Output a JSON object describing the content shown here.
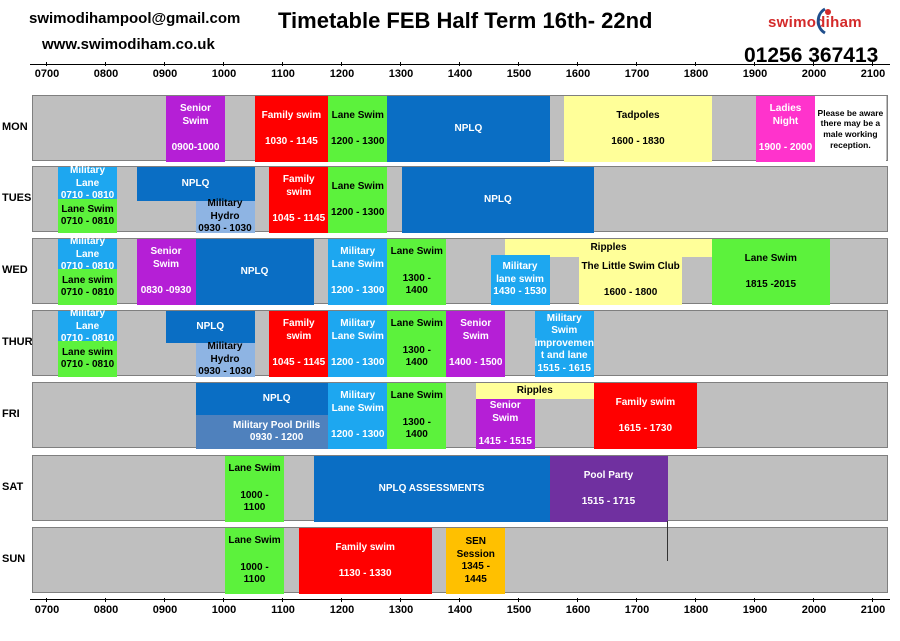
{
  "header": {
    "email": "swimodihampool@gmail.com",
    "website": "www.swimodiham.co.uk",
    "title": "Timetable FEB Half Term 16th- 22nd",
    "logo_text": "swimodiham",
    "phone": "01256 367413"
  },
  "colors": {
    "track": "#bfbfbf",
    "senior": "#b51fd6",
    "family": "#ff0000",
    "lane": "#5cf23c",
    "nplq": "#0a6ec4",
    "tadpoles": "#ffff99",
    "ladies": "#ff33cc",
    "military": "#1da7f0",
    "hydro": "#8eb4e3",
    "drills": "#4f81bd",
    "pool_party": "#7030a0",
    "sen": "#ffc000"
  },
  "time_axis": [
    "0700",
    "0800",
    "0900",
    "1000",
    "1100",
    "1200",
    "1300",
    "1400",
    "1500",
    "1600",
    "1700",
    "1800",
    "1900",
    "2000",
    "2100"
  ],
  "days": [
    {
      "label": "MON",
      "blocks": [
        {
          "name": "senior-swim",
          "lines": [
            "Senior",
            "Swim",
            "",
            "0900-1000"
          ],
          "color": "#b51fd6",
          "fg": "#ffffff"
        },
        {
          "name": "family-swim",
          "lines": [
            "Family swim",
            "",
            "1030 - 1145"
          ],
          "color": "#ff0000",
          "fg": "#ffffff"
        },
        {
          "name": "lane-swim",
          "lines": [
            "Lane Swim",
            "",
            "1200 - 1300"
          ],
          "color": "#5cf23c",
          "fg": "#000000"
        },
        {
          "name": "nplq",
          "lines": [
            "NPLQ"
          ],
          "color": "#0a6ec4",
          "fg": "#ffffff"
        },
        {
          "name": "tadpoles",
          "lines": [
            "Tadpoles",
            "",
            "1600 - 1830"
          ],
          "color": "#ffff99",
          "fg": "#000000"
        },
        {
          "name": "ladies-night",
          "lines": [
            "Ladies",
            "Night",
            "",
            "1900 - 2000"
          ],
          "color": "#ff33cc",
          "fg": "#ffffff"
        },
        {
          "name": "male-reception-note",
          "lines": [
            "Please be aware",
            "there may be a",
            "male working",
            "reception."
          ],
          "color": "#ffffff",
          "fg": "#000000"
        }
      ]
    },
    {
      "label": "TUES",
      "blocks": [
        {
          "name": "military-lane",
          "lines": [
            "Military Lane",
            "0710 - 0810"
          ],
          "color": "#1da7f0",
          "fg": "#ffffff"
        },
        {
          "name": "lane-swim-early",
          "lines": [
            "Lane Swim",
            "0710 - 0810"
          ],
          "color": "#5cf23c",
          "fg": "#000000"
        },
        {
          "name": "nplq-morning",
          "lines": [
            "NPLQ"
          ],
          "color": "#0a6ec4",
          "fg": "#ffffff"
        },
        {
          "name": "military-hydro",
          "lines": [
            "Military Hydro",
            "",
            "0930 - 1030"
          ],
          "color": "#8eb4e3",
          "fg": "#000000"
        },
        {
          "name": "family-swim",
          "lines": [
            "Family swim",
            "",
            "1045 - 1145"
          ],
          "color": "#ff0000",
          "fg": "#ffffff"
        },
        {
          "name": "lane-swim",
          "lines": [
            "Lane Swim",
            "",
            "1200 - 1300"
          ],
          "color": "#5cf23c",
          "fg": "#000000"
        },
        {
          "name": "nplq-afternoon",
          "lines": [
            "NPLQ"
          ],
          "color": "#0a6ec4",
          "fg": "#ffffff"
        }
      ]
    },
    {
      "label": "WED",
      "blocks": [
        {
          "name": "military-lane",
          "lines": [
            "Military Lane",
            "0710 - 0810"
          ],
          "color": "#1da7f0",
          "fg": "#ffffff"
        },
        {
          "name": "lane-swim-early",
          "lines": [
            "Lane swim",
            "0710 - 0810"
          ],
          "color": "#5cf23c",
          "fg": "#000000"
        },
        {
          "name": "senior-swim",
          "lines": [
            "Senior",
            "Swim",
            "",
            "0830 -0930"
          ],
          "color": "#b51fd6",
          "fg": "#ffffff"
        },
        {
          "name": "nplq",
          "lines": [
            "NPLQ"
          ],
          "color": "#0a6ec4",
          "fg": "#ffffff"
        },
        {
          "name": "military-lane-swim",
          "lines": [
            "Military",
            "Lane Swim",
            "",
            "1200 - 1300"
          ],
          "color": "#1da7f0",
          "fg": "#ffffff"
        },
        {
          "name": "lane-swim",
          "lines": [
            "Lane Swim",
            "",
            "1300 -",
            "1400"
          ],
          "color": "#5cf23c",
          "fg": "#000000"
        },
        {
          "name": "ripples",
          "lines": [
            "Ripples"
          ],
          "color": "#ffff99",
          "fg": "#000000"
        },
        {
          "name": "military-lane-swim-afternoon",
          "lines": [
            "Military",
            "lane swim",
            "1430 - 1530"
          ],
          "color": "#1da7f0",
          "fg": "#ffffff"
        },
        {
          "name": "little-swim-club",
          "lines": [
            "The Little Swim Club",
            "",
            "1600 - 1800"
          ],
          "color": "#ffff99",
          "fg": "#000000"
        },
        {
          "name": "lane-swim-evening",
          "lines": [
            "Lane Swim",
            "",
            "1815 -2015"
          ],
          "color": "#5cf23c",
          "fg": "#000000"
        }
      ]
    },
    {
      "label": "THUR",
      "blocks": [
        {
          "name": "military-lane",
          "lines": [
            "Military Lane",
            "0710 - 0810"
          ],
          "color": "#1da7f0",
          "fg": "#ffffff"
        },
        {
          "name": "lane-swim-early",
          "lines": [
            "Lane swim",
            "0710 - 0810"
          ],
          "color": "#5cf23c",
          "fg": "#000000"
        },
        {
          "name": "nplq",
          "lines": [
            "NPLQ"
          ],
          "color": "#0a6ec4",
          "fg": "#ffffff"
        },
        {
          "name": "military-hydro",
          "lines": [
            "Military Hydro",
            "",
            "0930 - 1030"
          ],
          "color": "#8eb4e3",
          "fg": "#000000"
        },
        {
          "name": "family-swim",
          "lines": [
            "Family swim",
            "",
            "1045 - 1145"
          ],
          "color": "#ff0000",
          "fg": "#ffffff"
        },
        {
          "name": "military-lane-swim",
          "lines": [
            "Military",
            "Lane Swim",
            "",
            "1200 - 1300"
          ],
          "color": "#1da7f0",
          "fg": "#ffffff"
        },
        {
          "name": "lane-swim",
          "lines": [
            "Lane Swim",
            "",
            "1300 -",
            "1400"
          ],
          "color": "#5cf23c",
          "fg": "#000000"
        },
        {
          "name": "senior-swim",
          "lines": [
            "Senior Swim",
            "",
            "1400 - 1500"
          ],
          "color": "#b51fd6",
          "fg": "#ffffff"
        },
        {
          "name": "military-swim-improvement",
          "lines": [
            "Military",
            "Swim",
            "improvemen",
            "t and lane",
            "1515 - 1615"
          ],
          "color": "#1da7f0",
          "fg": "#ffffff"
        }
      ]
    },
    {
      "label": "FRI",
      "blocks": [
        {
          "name": "nplq",
          "lines": [
            "NPLQ"
          ],
          "color": "#0a6ec4",
          "fg": "#ffffff"
        },
        {
          "name": "military-pool-drills",
          "lines": [
            "Military Pool Drills",
            "0930 - 1200"
          ],
          "color": "#4f81bd",
          "fg": "#ffffff"
        },
        {
          "name": "military-lane-swim",
          "lines": [
            "Military",
            "Lane Swim",
            "",
            "1200 - 1300"
          ],
          "color": "#1da7f0",
          "fg": "#ffffff"
        },
        {
          "name": "lane-swim",
          "lines": [
            "Lane Swim",
            "",
            "1300 -",
            "1400"
          ],
          "color": "#5cf23c",
          "fg": "#000000"
        },
        {
          "name": "ripples",
          "lines": [
            "Ripples"
          ],
          "color": "#ffff99",
          "fg": "#000000"
        },
        {
          "name": "senior-swim",
          "lines": [
            "Senior Swim",
            "",
            "1415 - 1515"
          ],
          "color": "#b51fd6",
          "fg": "#ffffff"
        },
        {
          "name": "family-swim",
          "lines": [
            "Family swim",
            "",
            "1615 - 1730"
          ],
          "color": "#ff0000",
          "fg": "#ffffff"
        }
      ]
    },
    {
      "label": "SAT",
      "blocks": [
        {
          "name": "lane-swim",
          "lines": [
            "Lane Swim",
            "",
            "1000 -",
            "1100"
          ],
          "color": "#5cf23c",
          "fg": "#000000"
        },
        {
          "name": "nplq-assessments",
          "lines": [
            "NPLQ ASSESSMENTS"
          ],
          "color": "#0a6ec4",
          "fg": "#ffffff"
        },
        {
          "name": "pool-party",
          "lines": [
            "Pool Party",
            "",
            "1515 - 1715"
          ],
          "color": "#7030a0",
          "fg": "#ffffff"
        }
      ]
    },
    {
      "label": "SUN",
      "blocks": [
        {
          "name": "lane-swim",
          "lines": [
            "Lane Swim",
            "",
            "1000 -",
            "1100"
          ],
          "color": "#5cf23c",
          "fg": "#000000"
        },
        {
          "name": "family-swim",
          "lines": [
            "Family swim",
            "",
            "1130 - 1330"
          ],
          "color": "#ff0000",
          "fg": "#ffffff"
        },
        {
          "name": "sen-session",
          "lines": [
            "SEN",
            "Session",
            "1345 -",
            "1445"
          ],
          "color": "#ffc000",
          "fg": "#000000"
        }
      ]
    }
  ]
}
